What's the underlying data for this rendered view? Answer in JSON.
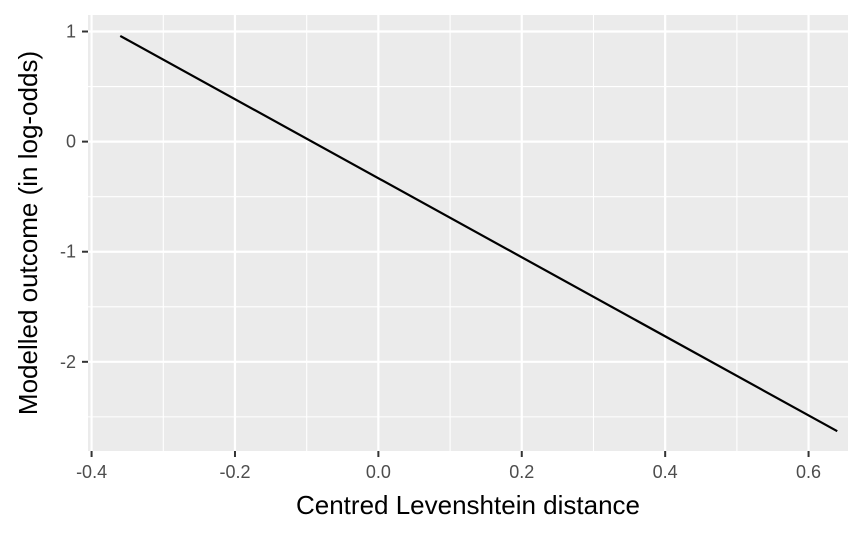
{
  "chart_data": {
    "type": "line",
    "title": "",
    "xlabel": "Centred Levenshtein distance",
    "ylabel": "Modelled outcome (in log-odds)",
    "xlim": [
      -0.405,
      0.655
    ],
    "ylim": [
      -2.81,
      1.15
    ],
    "x_ticks": [
      -0.4,
      -0.2,
      0.0,
      0.2,
      0.4,
      0.6
    ],
    "x_tick_labels": [
      "-0.4",
      "-0.2",
      "0.0",
      "0.2",
      "0.4",
      "0.6"
    ],
    "y_ticks": [
      1,
      0,
      -1,
      -2
    ],
    "y_tick_labels": [
      "1",
      "0",
      "-1",
      "-2"
    ],
    "grid": true,
    "series": [
      {
        "x": [
          -0.36,
          0.64
        ],
        "y": [
          0.96,
          -2.63
        ]
      }
    ],
    "colors": {
      "panel": "#ebebeb",
      "grid": "#ffffff",
      "line": "#000000",
      "tick_text": "#4d4d4d",
      "axis_text": "#000000"
    }
  }
}
